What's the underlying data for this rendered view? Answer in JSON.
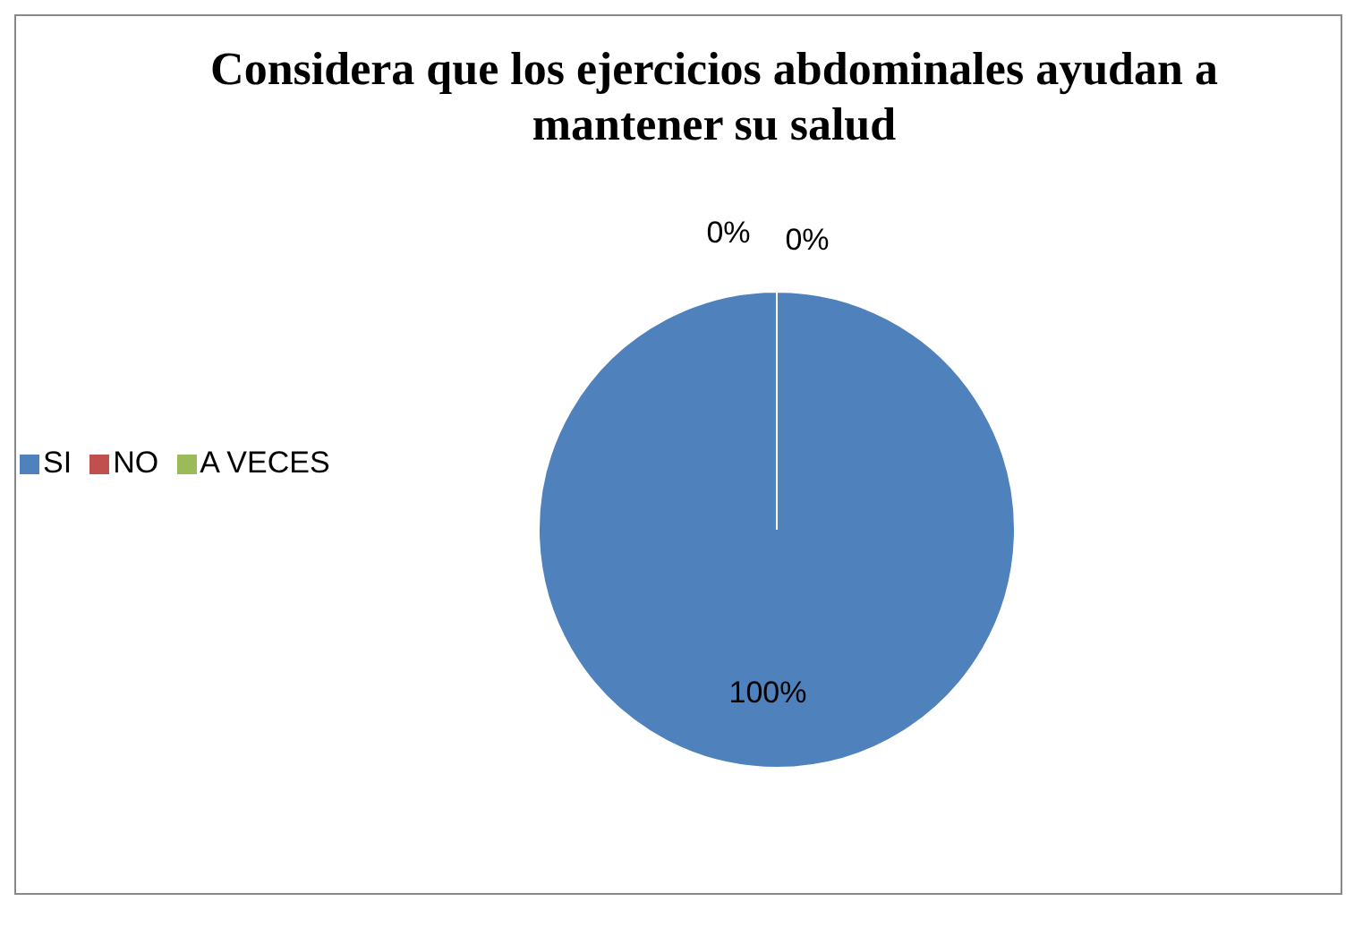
{
  "chart_data": {
    "type": "pie",
    "title": "Considera que los ejercicios abdominales ayudan a mantener su salud",
    "categories": [
      "SI",
      "NO",
      "A VECES"
    ],
    "values": [
      100,
      0,
      0
    ],
    "value_labels": [
      "100%",
      "0%",
      "0%"
    ],
    "colors": [
      "#4f81bd",
      "#c0504d",
      "#9bbb59"
    ],
    "legend": "left"
  }
}
